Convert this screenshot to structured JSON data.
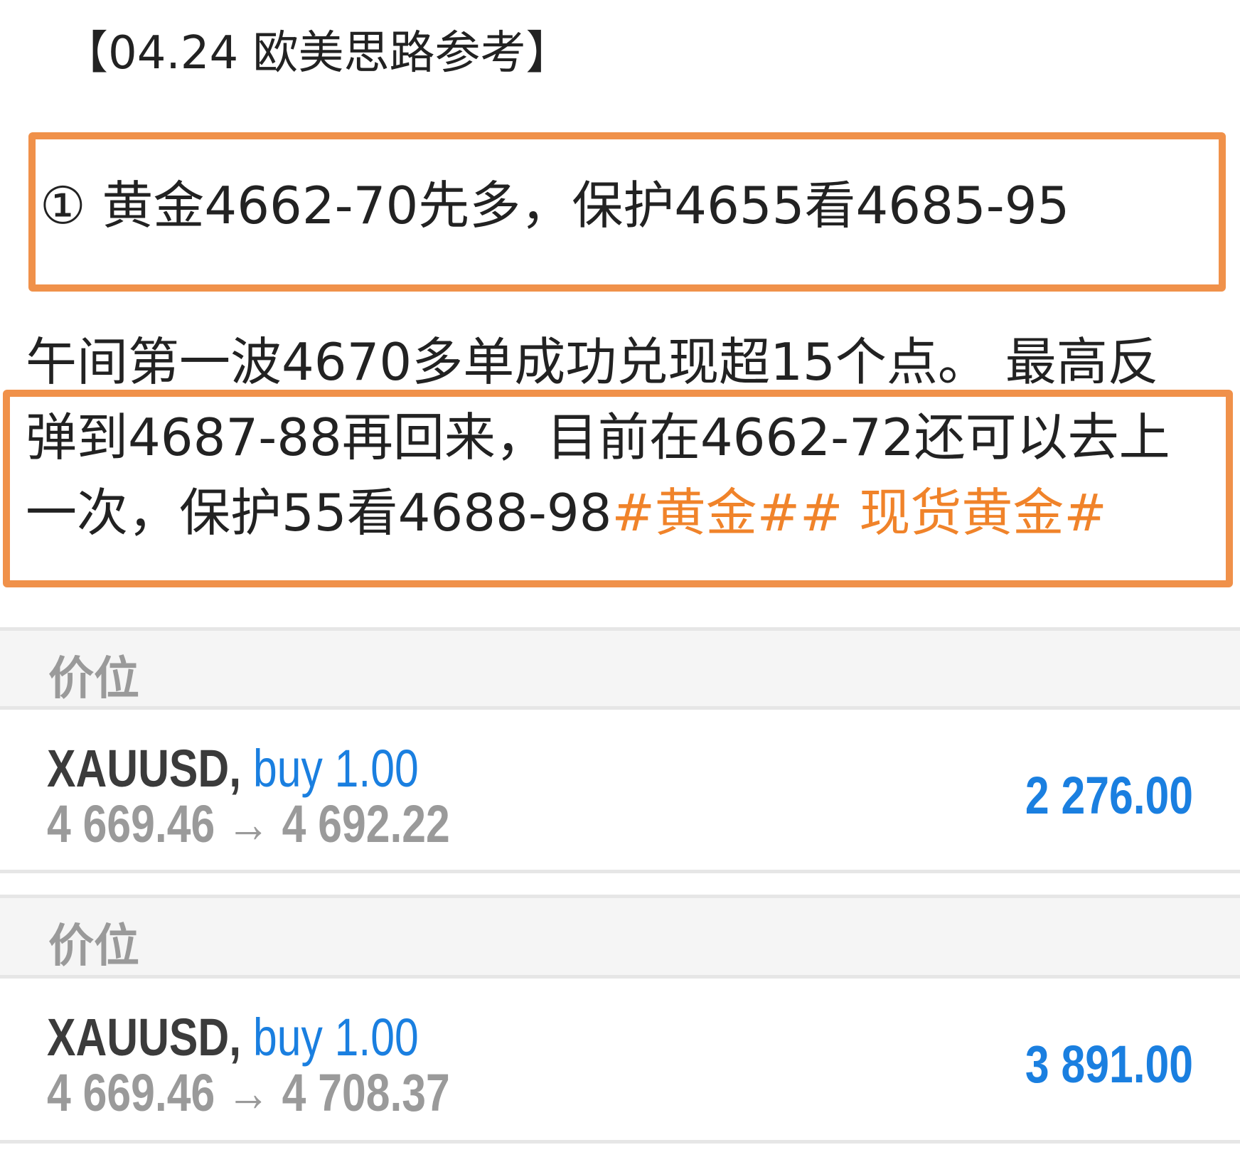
{
  "title": "【04.24 欧美思路参考】",
  "plan_line": "① 黄金4662-70先多，保护4655看4685-95",
  "paragraph": {
    "line1": "午间第一波4670多单成功兑现超15个点。 最高反",
    "line2": "弹到4687-88再回来，目前在4662-72还可以去上",
    "line3_text": "一次，保护55看4688-98",
    "line3_tags": "#黄金## 现货黄金#"
  },
  "colors": {
    "highlight_box": "#f0914a",
    "tag": "#f0832a",
    "accent_blue": "#1a7fe0"
  },
  "trades": [
    {
      "section_label": "价位",
      "symbol": "XAUUSD,",
      "side_volume": "buy 1.00",
      "prices": "4 669.46 → 4 692.22",
      "profit": "2 276.00"
    },
    {
      "section_label": "价位",
      "symbol": "XAUUSD,",
      "side_volume": "buy 1.00",
      "prices": "4 669.46 → 4 708.37",
      "profit": "3 891.00"
    }
  ]
}
